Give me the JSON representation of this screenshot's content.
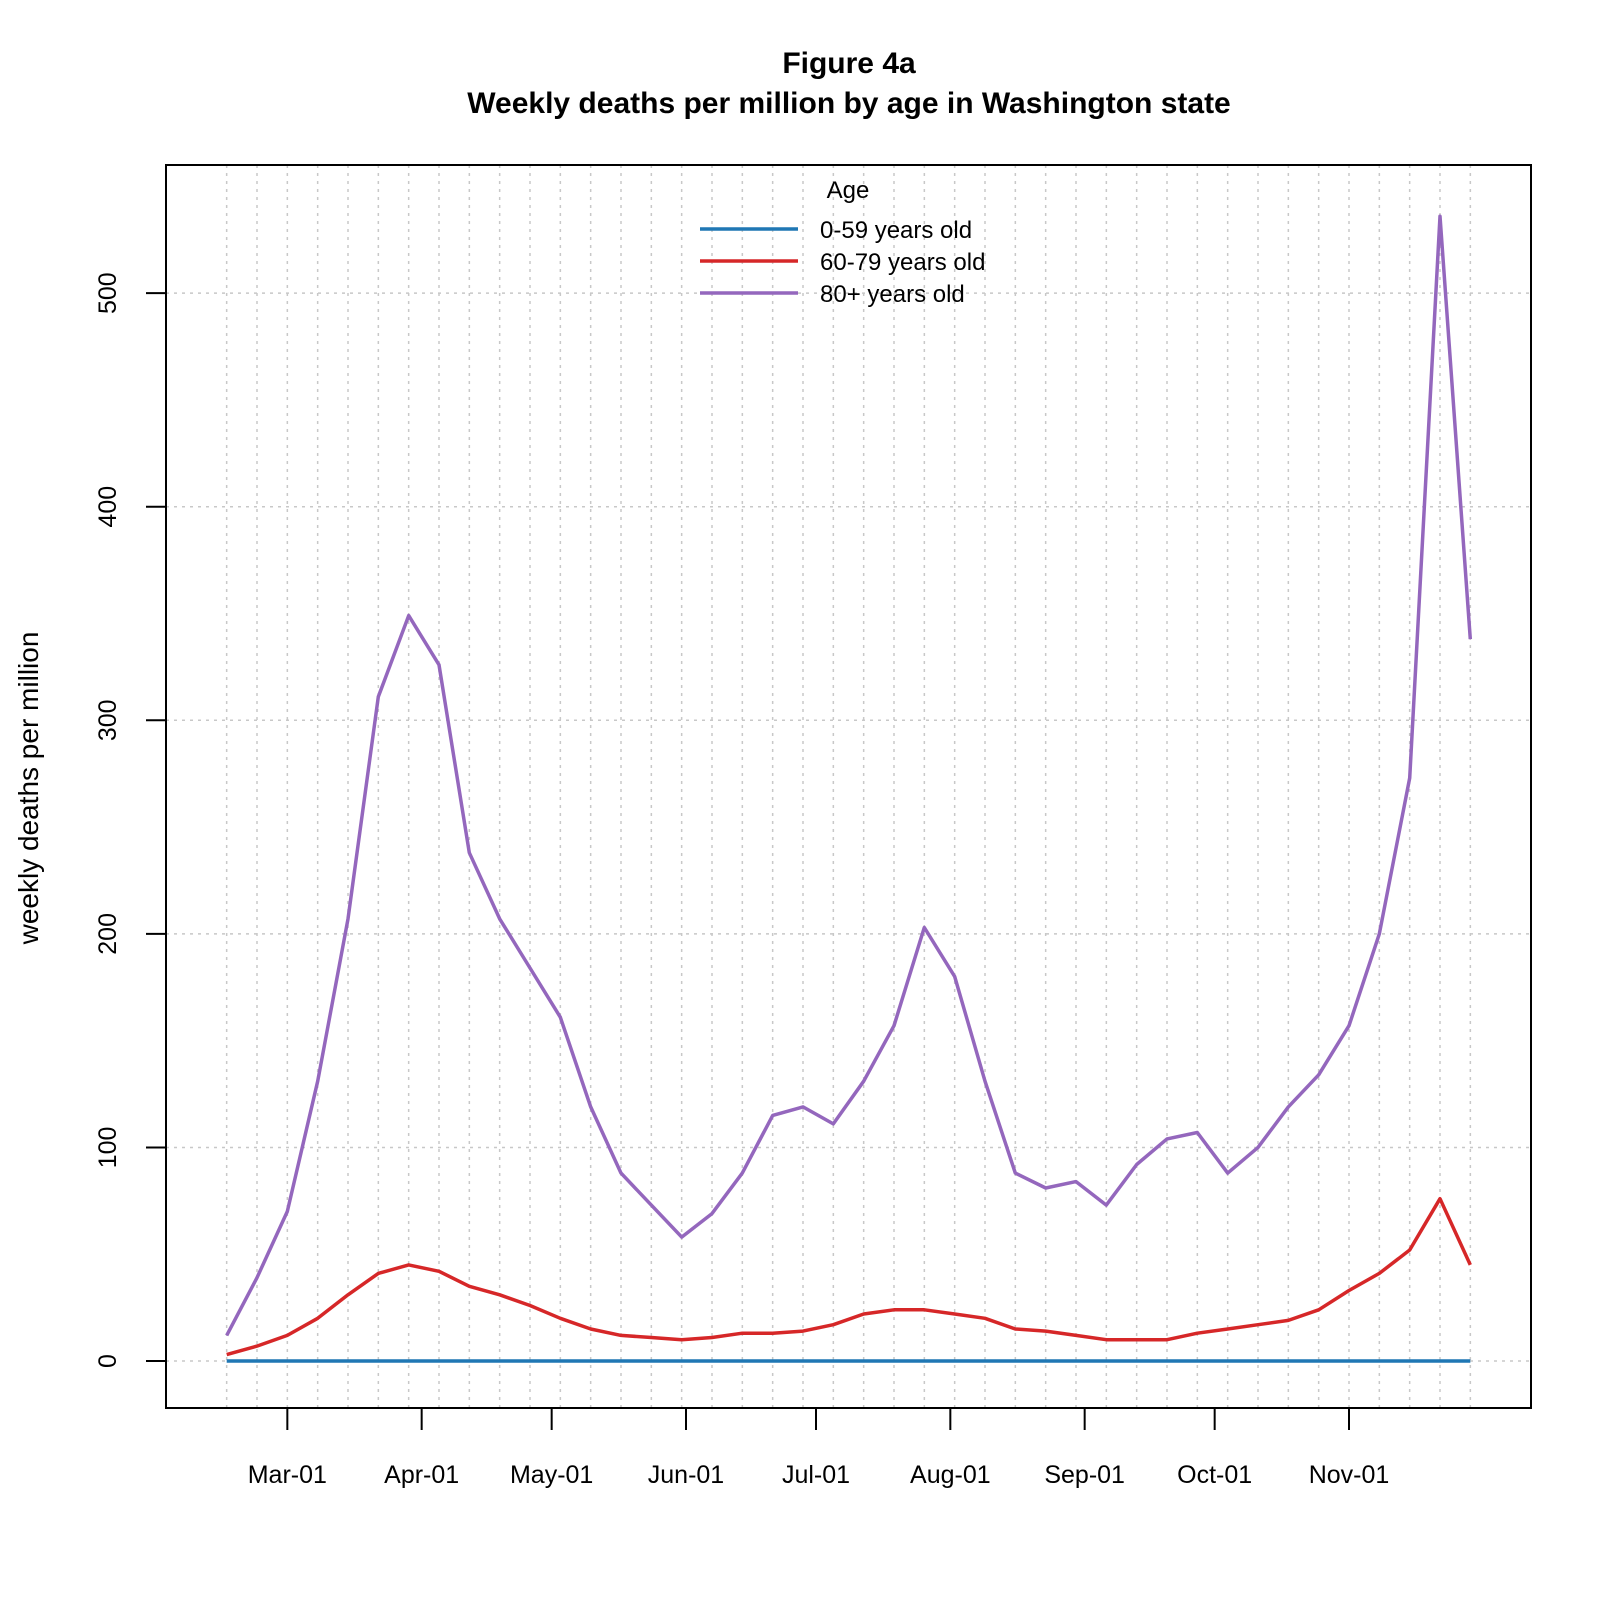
{
  "chart_data": {
    "type": "line",
    "title": "Figure 4a",
    "subtitle": "Weekly deaths per million by age in Washington state",
    "xlabel": "",
    "ylabel": "weekly deaths per million",
    "ylim": [
      -22,
      560
    ],
    "yticks": [
      0,
      100,
      200,
      300,
      400,
      500
    ],
    "x_start_day": 0,
    "x_step_days": 7,
    "xlim_days": [
      -14,
      301
    ],
    "x_tick_labels": [
      {
        "label": "Mar-01",
        "day": 14
      },
      {
        "label": "Apr-01",
        "day": 45
      },
      {
        "label": "May-01",
        "day": 75
      },
      {
        "label": "Jun-01",
        "day": 106
      },
      {
        "label": "Jul-01",
        "day": 136
      },
      {
        "label": "Aug-01",
        "day": 167
      },
      {
        "label": "Sep-01",
        "day": 198
      },
      {
        "label": "Oct-01",
        "day": 228
      },
      {
        "label": "Nov-01",
        "day": 259
      }
    ],
    "grid": true,
    "legend": {
      "title": "Age",
      "position": "top"
    },
    "series": [
      {
        "name": "0-59 years old",
        "color": "#1f77b4",
        "values": [
          0,
          0,
          0,
          0,
          0,
          0,
          0,
          0,
          0,
          0,
          0,
          0,
          0,
          0,
          0,
          0,
          0,
          0,
          0,
          0,
          0,
          0,
          0,
          0,
          0,
          0,
          0,
          0,
          0,
          0,
          0,
          0,
          0,
          0,
          0,
          0,
          0,
          0,
          0,
          0,
          0,
          0
        ]
      },
      {
        "name": "60-79 years old",
        "color": "#d62728",
        "values": [
          3,
          7,
          12,
          20,
          31,
          41,
          45,
          42,
          35,
          31,
          26,
          20,
          15,
          12,
          11,
          10,
          11,
          13,
          13,
          14,
          17,
          22,
          24,
          24,
          22,
          20,
          15,
          14,
          12,
          10,
          10,
          10,
          13,
          15,
          17,
          19,
          24,
          33,
          41,
          52,
          76,
          45
        ]
      },
      {
        "name": "80+ years old",
        "color": "#9467bd",
        "values": [
          12,
          39,
          70,
          131,
          207,
          311,
          349,
          326,
          238,
          207,
          184,
          161,
          119,
          88,
          73,
          58,
          69,
          88,
          115,
          119,
          111,
          131,
          157,
          203,
          180,
          131,
          88,
          81,
          84,
          73,
          92,
          104,
          107,
          88,
          100,
          119,
          134,
          157,
          200,
          273,
          536,
          338
        ]
      }
    ]
  }
}
